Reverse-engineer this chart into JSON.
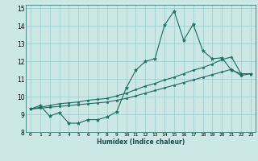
{
  "xlabel": "Humidex (Indice chaleur)",
  "bg_color": "#cce8e4",
  "grid_color": "#99cccc",
  "line_color": "#1a6b5e",
  "xlim": [
    -0.5,
    23.5
  ],
  "ylim": [
    8,
    15.2
  ],
  "xticks": [
    0,
    1,
    2,
    3,
    4,
    5,
    6,
    7,
    8,
    9,
    10,
    11,
    12,
    13,
    14,
    15,
    16,
    17,
    18,
    19,
    20,
    21,
    22,
    23
  ],
  "yticks": [
    8,
    9,
    10,
    11,
    12,
    13,
    14,
    15
  ],
  "line1_x": [
    0,
    1,
    2,
    3,
    4,
    5,
    6,
    7,
    8,
    9,
    10,
    11,
    12,
    13,
    14,
    15,
    16,
    17,
    18,
    19,
    20,
    21,
    22,
    23
  ],
  "line1_y": [
    9.3,
    9.5,
    8.9,
    9.1,
    8.5,
    8.5,
    8.7,
    8.7,
    8.85,
    9.15,
    10.5,
    11.5,
    12.0,
    12.15,
    14.05,
    14.85,
    13.2,
    14.1,
    12.6,
    12.15,
    12.2,
    11.5,
    11.3,
    11.3
  ],
  "line2_x": [
    0,
    1,
    2,
    3,
    4,
    5,
    6,
    7,
    8,
    9,
    10,
    11,
    12,
    13,
    14,
    15,
    16,
    17,
    18,
    19,
    20,
    21,
    22,
    23
  ],
  "line2_y": [
    9.3,
    9.4,
    9.5,
    9.6,
    9.65,
    9.7,
    9.8,
    9.85,
    9.9,
    10.05,
    10.2,
    10.4,
    10.6,
    10.75,
    10.95,
    11.1,
    11.3,
    11.5,
    11.65,
    11.85,
    12.1,
    12.25,
    11.3,
    11.3
  ],
  "line3_x": [
    0,
    1,
    2,
    3,
    4,
    5,
    6,
    7,
    8,
    9,
    10,
    11,
    12,
    13,
    14,
    15,
    16,
    17,
    18,
    19,
    20,
    21,
    22,
    23
  ],
  "line3_y": [
    9.3,
    9.35,
    9.4,
    9.45,
    9.5,
    9.55,
    9.6,
    9.65,
    9.7,
    9.8,
    9.9,
    10.05,
    10.2,
    10.35,
    10.5,
    10.65,
    10.8,
    10.95,
    11.1,
    11.25,
    11.4,
    11.55,
    11.2,
    11.3
  ]
}
